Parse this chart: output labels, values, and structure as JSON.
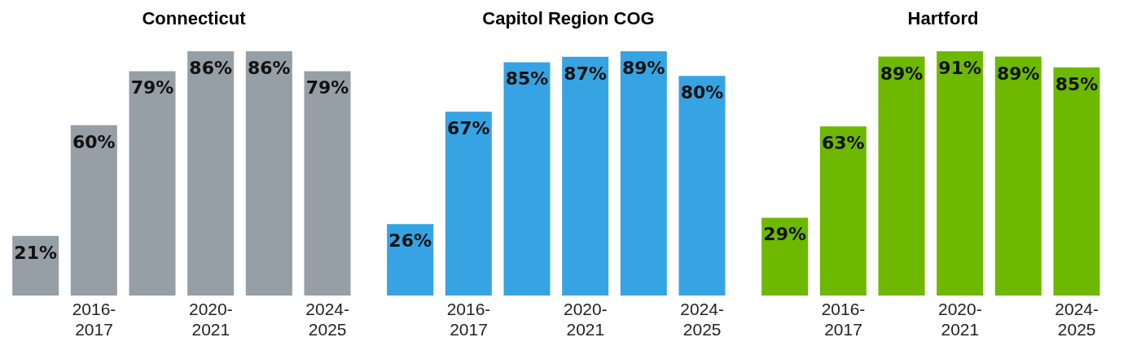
{
  "chart_data": [
    {
      "type": "bar",
      "title": "Connecticut",
      "categories": [
        null,
        "2016-2017",
        null,
        "2020-2021",
        null,
        "2024-2025"
      ],
      "values": [
        21,
        60,
        79,
        86,
        86,
        79
      ],
      "value_labels": [
        "21%",
        "60%",
        "79%",
        "86%",
        "86%",
        "79%"
      ],
      "color": "#969ea6"
    },
    {
      "type": "bar",
      "title": "Capitol Region COG",
      "categories": [
        null,
        "2016-2017",
        null,
        "2020-2021",
        null,
        "2024-2025"
      ],
      "values": [
        26,
        67,
        85,
        87,
        89,
        80
      ],
      "value_labels": [
        "26%",
        "67%",
        "85%",
        "87%",
        "89%",
        "80%"
      ],
      "color": "#36a3e3"
    },
    {
      "type": "bar",
      "title": "Hartford",
      "categories": [
        null,
        "2016-2017",
        null,
        "2020-2021",
        null,
        "2024-2025"
      ],
      "values": [
        29,
        63,
        89,
        91,
        89,
        85
      ],
      "value_labels": [
        "29%",
        "63%",
        "89%",
        "91%",
        "89%",
        "85%"
      ],
      "color": "#6eb800"
    }
  ]
}
